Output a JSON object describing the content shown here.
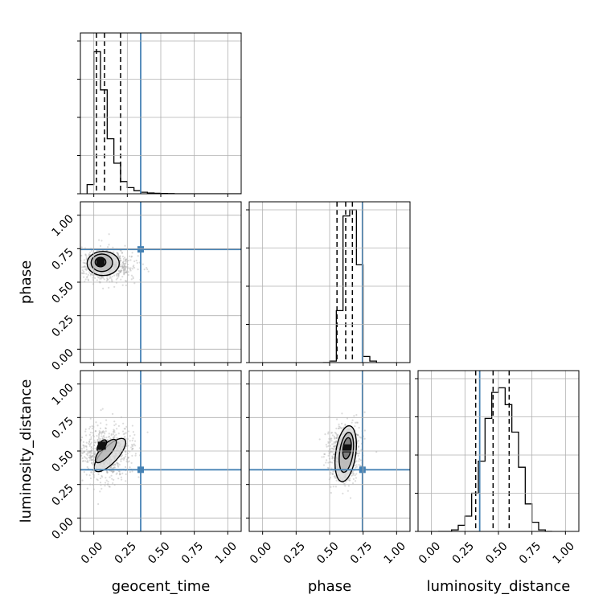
{
  "chart_data": {
    "type": "corner",
    "parameters": [
      "geocent_time",
      "phase",
      "luminosity_distance"
    ],
    "axis_range": [
      -0.1,
      1.1
    ],
    "tick_values": [
      0.0,
      0.25,
      0.5,
      0.75,
      1.0
    ],
    "tick_labels": [
      "0.00",
      "0.25",
      "0.50",
      "0.75",
      "1.00"
    ],
    "grid": true,
    "colors": {
      "truth": "#4682b4",
      "hist": "#000000",
      "points": "#9a9a9a",
      "grid": "#b0b0b0"
    },
    "truths": {
      "geocent_time": 0.35,
      "phase": 0.745,
      "luminosity_distance": 0.36
    },
    "histograms": [
      {
        "parameter": "geocent_time",
        "bin_start": -0.05,
        "bin_width": 0.05,
        "counts": [
          6,
          93,
          68,
          36,
          20,
          8,
          4,
          2,
          1,
          0.5,
          0.3,
          0.2,
          0.1,
          0,
          0,
          0,
          0,
          0,
          0,
          0,
          0,
          0,
          0
        ],
        "y_ticks": [
          0,
          25,
          50,
          75,
          100
        ],
        "y_max": 100,
        "quantiles": [
          0.02,
          0.08,
          0.2
        ]
      },
      {
        "parameter": "phase",
        "bin_start": 0.45,
        "bin_width": 0.05,
        "counts": [
          0,
          1,
          34,
          96,
          100,
          64,
          4,
          1
        ],
        "y_ticks": [
          0,
          25,
          50,
          75,
          100
        ],
        "y_max": 100,
        "quantiles": [
          0.555,
          0.62,
          0.67
        ]
      },
      {
        "parameter": "luminosity_distance",
        "bin_start": 0.05,
        "bin_width": 0.05,
        "counts": [
          0,
          0,
          1,
          4,
          10,
          25,
          46,
          74,
          91,
          94,
          83,
          65,
          42,
          18,
          6,
          1,
          0
        ],
        "y_ticks": [
          0,
          25,
          50,
          75,
          100
        ],
        "y_max": 100,
        "quantiles": [
          0.33,
          0.46,
          0.58
        ]
      }
    ],
    "scatter_panels": [
      {
        "x": "geocent_time",
        "y": "phase",
        "cloud": {
          "cx": 0.08,
          "cy": 0.63,
          "sx": 0.09,
          "sy": 0.06,
          "n": 700
        },
        "contours": [
          {
            "cx": 0.07,
            "cy": 0.64,
            "rx": 0.12,
            "ry": 0.09
          },
          {
            "cx": 0.06,
            "cy": 0.645,
            "rx": 0.08,
            "ry": 0.065
          },
          {
            "cx": 0.05,
            "cy": 0.65,
            "rx": 0.04,
            "ry": 0.035
          }
        ]
      },
      {
        "x": "geocent_time",
        "y": "luminosity_distance",
        "cloud": {
          "cx": 0.1,
          "cy": 0.48,
          "sx": 0.08,
          "sy": 0.1,
          "n": 700
        },
        "contours": [
          {
            "cx": 0.12,
            "cy": 0.47,
            "rx": 0.16,
            "ry": 0.06,
            "angle": 47
          },
          {
            "cx": 0.09,
            "cy": 0.5,
            "rx": 0.11,
            "ry": 0.04,
            "angle": 49
          },
          {
            "cx": 0.06,
            "cy": 0.54,
            "rx": 0.05,
            "ry": 0.025,
            "angle": 55
          }
        ]
      },
      {
        "x": "phase",
        "y": "luminosity_distance",
        "cloud": {
          "cx": 0.61,
          "cy": 0.48,
          "sx": 0.05,
          "sy": 0.11,
          "n": 700
        },
        "contours": [
          {
            "cx": 0.62,
            "cy": 0.48,
            "rx": 0.075,
            "ry": 0.21,
            "angle": -8
          },
          {
            "cx": 0.625,
            "cy": 0.49,
            "rx": 0.05,
            "ry": 0.15,
            "angle": -8
          },
          {
            "cx": 0.63,
            "cy": 0.52,
            "rx": 0.03,
            "ry": 0.08,
            "angle": -8
          }
        ]
      }
    ]
  }
}
